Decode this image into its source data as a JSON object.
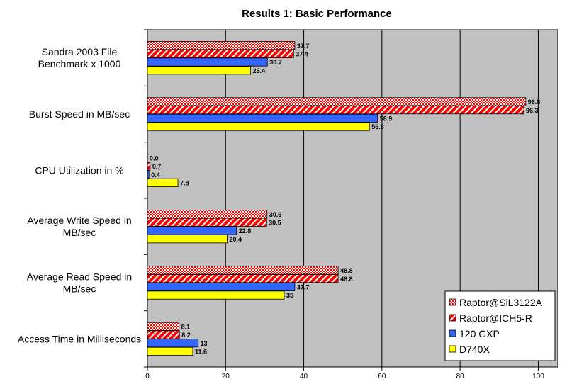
{
  "chart_data": {
    "type": "bar",
    "orientation": "horizontal",
    "title": "Results 1: Basic Performance",
    "categories": [
      [
        "Sandra 2003 File",
        "Benchmark x 1000"
      ],
      [
        "Burst Speed in MB/sec"
      ],
      [
        "CPU Utilization in %"
      ],
      [
        "Average Write Speed in",
        "MB/sec"
      ],
      [
        "Average Read Speed in",
        "MB/sec"
      ],
      [
        "Access Time in Milliseconds"
      ]
    ],
    "series": [
      {
        "name": "Raptor@SiL3122A",
        "color": "#ff0000",
        "pattern": "checker",
        "values": [
          37.7,
          96.8,
          0.0,
          30.6,
          48.8,
          8.1
        ],
        "labels": [
          "37.7",
          "96.8",
          "0.0",
          "30.6",
          "48.8",
          "8.1"
        ]
      },
      {
        "name": "Raptor@ICH5-R",
        "color": "#ff0000",
        "pattern": "diagonal",
        "values": [
          37.4,
          96.3,
          0.7,
          30.5,
          48.8,
          8.2
        ],
        "labels": [
          "37.4",
          "96.3",
          "0.7",
          "30.5",
          "48.8",
          "8.2"
        ]
      },
      {
        "name": "120 GXP",
        "color": "#3366ff",
        "pattern": "solid",
        "values": [
          30.7,
          58.9,
          0.4,
          22.8,
          37.7,
          13
        ],
        "labels": [
          "30.7",
          "58.9",
          "0.4",
          "22.8",
          "37.7",
          "13"
        ]
      },
      {
        "name": "D740X",
        "color": "#ffff00",
        "pattern": "solid",
        "values": [
          26.4,
          56.8,
          7.8,
          20.4,
          35,
          11.6
        ],
        "labels": [
          "26.4",
          "56.8",
          "7.8",
          "20.4",
          "35",
          "11.6"
        ]
      }
    ],
    "xlim": [
      0,
      105
    ],
    "xticks": [
      0,
      20,
      40,
      60,
      80,
      100
    ],
    "grid": "vertical",
    "legend": "bottom-right",
    "plot_background": "#c0c0c0"
  }
}
